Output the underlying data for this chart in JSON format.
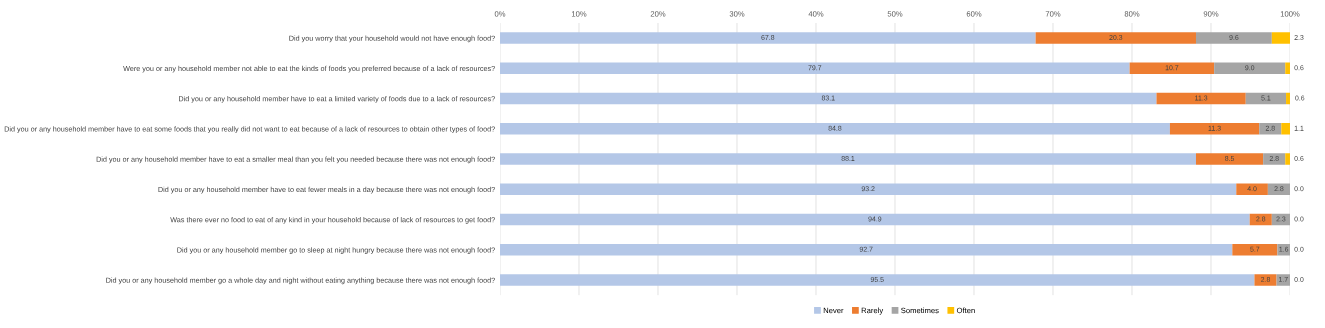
{
  "chart_data": {
    "type": "bar",
    "orientation": "horizontal",
    "stacked": true,
    "categories": [
      "Did you worry that your household would not have enough food?",
      "Were you or any household member not able to eat the kinds of foods you preferred because of a lack of resources?",
      "Did you or any household member have to eat a limited variety of foods due to a lack of resources?",
      "Did you or any household member have to eat some foods that you really did not want to eat because of a lack of resources to obtain other types of food?",
      "Did you or any household member have to eat a smaller meal than you felt you needed because there was not enough food?",
      "Did you or any household member have to eat fewer meals in a day because there was not enough food?",
      "Was there ever no food to eat of any kind in your household because of lack of resources to get food?",
      "Did you or any household member go to sleep at night hungry because there was not enough food?",
      "Did you or any household member go a whole day and night without eating anything because there was not enough food?"
    ],
    "series": [
      {
        "name": "Never",
        "color": "#b4c7e7",
        "values": [
          67.8,
          79.7,
          83.1,
          84.8,
          88.1,
          93.2,
          94.9,
          92.7,
          95.5
        ],
        "value_labels": [
          "67.8",
          "79.7",
          "83.1",
          "84.8",
          "88.1",
          "93.2",
          "94.9",
          "92.7",
          "95.5"
        ]
      },
      {
        "name": "Rarely",
        "color": "#ed7d31",
        "values": [
          20.3,
          10.7,
          11.3,
          11.3,
          8.5,
          4.0,
          2.8,
          5.7,
          2.8
        ],
        "value_labels": [
          "20.3",
          "10.7",
          "11.3",
          "11.3",
          "8.5",
          "4.0",
          "2.8",
          "5.7",
          "2.8"
        ]
      },
      {
        "name": "Sometimes",
        "color": "#a5a5a5",
        "values": [
          9.6,
          9.0,
          5.1,
          2.8,
          2.8,
          2.8,
          2.3,
          1.6,
          1.7
        ],
        "value_labels": [
          "9.6",
          "9.0",
          "5.1",
          "2.8",
          "2.8",
          "2.8",
          "2.3",
          "1.6",
          "1.7"
        ]
      },
      {
        "name": "Often",
        "color": "#ffc000",
        "values": [
          2.3,
          0.6,
          0.6,
          1.1,
          0.6,
          0.0,
          0.0,
          0.0,
          0.0
        ],
        "value_labels": [
          "2.3",
          "0.6",
          "0.6",
          "1.1",
          "0.6",
          "0.0",
          "0.0",
          "0.0",
          "0.0"
        ]
      }
    ],
    "xlim": [
      0,
      100
    ],
    "xticks": [
      {
        "value": 0,
        "label": "0%"
      },
      {
        "value": 10,
        "label": "10%"
      },
      {
        "value": 20,
        "label": "20%"
      },
      {
        "value": 30,
        "label": "30%"
      },
      {
        "value": 40,
        "label": "40%"
      },
      {
        "value": 50,
        "label": "50%"
      },
      {
        "value": 60,
        "label": "60%"
      },
      {
        "value": 70,
        "label": "70%"
      },
      {
        "value": 80,
        "label": "80%"
      },
      {
        "value": 90,
        "label": "90%"
      },
      {
        "value": 100,
        "label": "100%"
      }
    ],
    "grid": "x",
    "legend": "bottom"
  }
}
